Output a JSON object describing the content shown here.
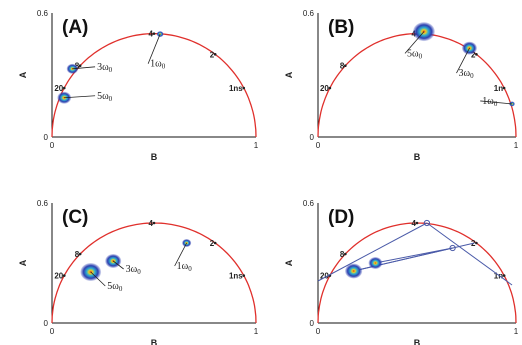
{
  "colors": {
    "semicircle": "#e0302c",
    "axis": "#111111",
    "connector": "#4a5aa8",
    "cluster_outer": "#2c3fb0",
    "cluster_mid": "#30b0d0",
    "cluster_inner": "#f0d020",
    "cluster_core": "#e03020"
  },
  "chart_data": [
    {
      "type": "scatter",
      "panel_label": "(A)",
      "xlabel": "B",
      "ylabel": "A",
      "xlim": [
        0,
        1
      ],
      "ylim": [
        0,
        0.6
      ],
      "x_ticks": [
        "0",
        "1"
      ],
      "y_ticks": [
        "0",
        "0.6"
      ],
      "semicircle": {
        "center": [
          0.5,
          0
        ],
        "radius": 0.5
      },
      "lifetime_marks": [
        {
          "label": "20",
          "x": 0.06,
          "y": 0.237
        },
        {
          "label": "8",
          "x": 0.138,
          "y": 0.345
        },
        {
          "label": "4",
          "x": 0.5,
          "y": 0.5
        },
        {
          "label": "2",
          "x": 0.8,
          "y": 0.4
        },
        {
          "label": "1ns",
          "x": 0.94,
          "y": 0.237
        }
      ],
      "clusters": [
        {
          "label": "1ω",
          "sub": "0",
          "x": 0.53,
          "y": 0.498,
          "size": 0.6,
          "label_x": 0.53,
          "label_y": 0.34
        },
        {
          "label": "3ω",
          "sub": "0",
          "x": 0.1,
          "y": 0.33,
          "size": 1.0,
          "label_x": 0.27,
          "label_y": 0.325
        },
        {
          "label": "5ω",
          "sub": "0",
          "x": 0.06,
          "y": 0.19,
          "size": 1.2,
          "label_x": 0.27,
          "label_y": 0.185
        }
      ],
      "connectors": []
    },
    {
      "type": "scatter",
      "panel_label": "(B)",
      "xlabel": "B",
      "ylabel": "A",
      "xlim": [
        0,
        1
      ],
      "ylim": [
        0,
        0.6
      ],
      "x_ticks": [
        "0",
        "1"
      ],
      "y_ticks": [
        "0",
        "0.6"
      ],
      "semicircle": {
        "center": [
          0.5,
          0
        ],
        "radius": 0.5
      },
      "lifetime_marks": [
        {
          "label": "20",
          "x": 0.06,
          "y": 0.237
        },
        {
          "label": "8",
          "x": 0.138,
          "y": 0.345
        },
        {
          "label": "4",
          "x": 0.5,
          "y": 0.5
        },
        {
          "label": "2",
          "x": 0.8,
          "y": 0.4
        },
        {
          "label": "1n",
          "x": 0.94,
          "y": 0.237
        }
      ],
      "clusters": [
        {
          "label": "5ω",
          "sub": "0",
          "x": 0.535,
          "y": 0.51,
          "size": 1.9,
          "label_x": 0.5,
          "label_y": 0.39
        },
        {
          "label": "3ω",
          "sub": "0",
          "x": 0.765,
          "y": 0.43,
          "size": 1.3,
          "label_x": 0.76,
          "label_y": 0.295
        },
        {
          "label": "1ω",
          "sub": "0",
          "x": 0.98,
          "y": 0.16,
          "size": 0.5,
          "label_x": 0.88,
          "label_y": 0.16
        }
      ],
      "connectors": []
    },
    {
      "type": "scatter",
      "panel_label": "(C)",
      "xlabel": "B",
      "ylabel": "A",
      "xlim": [
        0,
        1
      ],
      "ylim": [
        0,
        0.6
      ],
      "x_ticks": [
        "0",
        "1"
      ],
      "y_ticks": [
        "0",
        "0.6"
      ],
      "semicircle": {
        "center": [
          0.5,
          0
        ],
        "radius": 0.5
      },
      "lifetime_marks": [
        {
          "label": "20",
          "x": 0.06,
          "y": 0.237
        },
        {
          "label": "8",
          "x": 0.138,
          "y": 0.345
        },
        {
          "label": "4",
          "x": 0.5,
          "y": 0.5
        },
        {
          "label": "2",
          "x": 0.8,
          "y": 0.4
        },
        {
          "label": "1ns",
          "x": 0.94,
          "y": 0.237
        }
      ],
      "clusters": [
        {
          "label": "1ω",
          "sub": "0",
          "x": 0.66,
          "y": 0.4,
          "size": 0.8,
          "label_x": 0.66,
          "label_y": 0.27
        },
        {
          "label": "3ω",
          "sub": "0",
          "x": 0.3,
          "y": 0.31,
          "size": 1.4,
          "label_x": 0.41,
          "label_y": 0.255
        },
        {
          "label": "5ω",
          "sub": "0",
          "x": 0.19,
          "y": 0.255,
          "size": 1.8,
          "label_x": 0.32,
          "label_y": 0.17
        }
      ],
      "connectors": []
    },
    {
      "type": "scatter",
      "panel_label": "(D)",
      "xlabel": "B",
      "ylabel": "A",
      "xlim": [
        0,
        1
      ],
      "ylim": [
        0,
        0.6
      ],
      "x_ticks": [
        "0",
        "1"
      ],
      "y_ticks": [
        "0",
        "0.6"
      ],
      "semicircle": {
        "center": [
          0.5,
          0
        ],
        "radius": 0.5
      },
      "lifetime_marks": [
        {
          "label": "20",
          "x": 0.06,
          "y": 0.237
        },
        {
          "label": "8",
          "x": 0.138,
          "y": 0.345
        },
        {
          "label": "4",
          "x": 0.5,
          "y": 0.5
        },
        {
          "label": "2",
          "x": 0.8,
          "y": 0.4
        },
        {
          "label": "1n",
          "x": 0.94,
          "y": 0.237
        }
      ],
      "clusters": [
        {
          "label": "",
          "sub": "",
          "x": 0.18,
          "y": 0.26,
          "size": 1.5
        },
        {
          "label": "",
          "sub": "",
          "x": 0.29,
          "y": 0.3,
          "size": 1.2
        }
      ],
      "connectors": [
        [
          [
            0.0,
            0.21
          ],
          [
            0.55,
            0.5
          ]
        ],
        [
          [
            0.55,
            0.5
          ],
          [
            0.98,
            0.19
          ]
        ],
        [
          [
            0.18,
            0.26
          ],
          [
            0.68,
            0.375
          ]
        ],
        [
          [
            0.29,
            0.3
          ],
          [
            0.68,
            0.375
          ]
        ],
        [
          [
            0.18,
            0.26
          ],
          [
            0.79,
            0.4
          ]
        ]
      ],
      "markers": [
        {
          "x": 0.68,
          "y": 0.375
        },
        {
          "x": 0.55,
          "y": 0.5
        }
      ]
    }
  ]
}
